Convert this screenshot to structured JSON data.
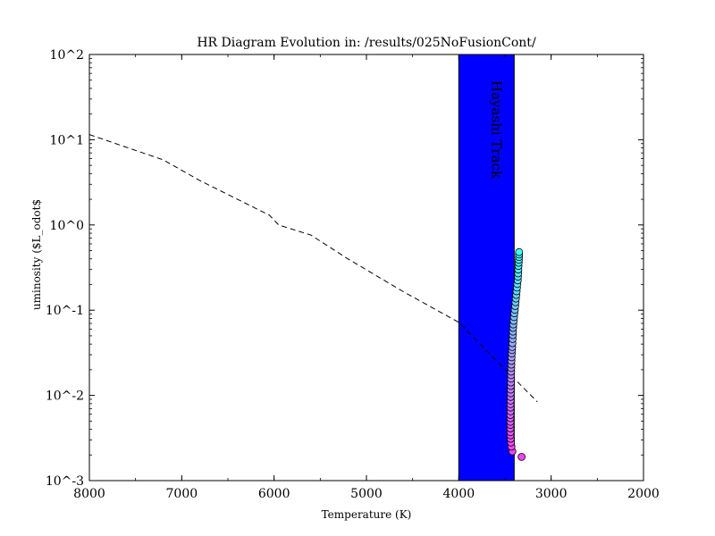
{
  "chart_data": {
    "type": "scatter",
    "title": "HR Diagram Evolution in: /results/025NoFusionCont/",
    "xlabel": "Temperature (K)",
    "ylabel": "uminosity ($L_odot$",
    "x_reversed": true,
    "xlim": [
      8000,
      2000
    ],
    "ylim": [
      0.001,
      100
    ],
    "y_scale": "log",
    "x_ticks": [
      8000,
      7000,
      6000,
      5000,
      4000,
      3000,
      2000
    ],
    "x_tick_labels": [
      "8000",
      "7000",
      "6000",
      "5000",
      "4000",
      "3000",
      "2000"
    ],
    "y_ticks": [
      0.001,
      0.01,
      0.1,
      1,
      10,
      100
    ],
    "y_tick_labels": [
      "10^-3",
      "10^-2",
      "10^-1",
      "10^0",
      "10^1",
      "10^2"
    ],
    "band": {
      "x_from": 4000,
      "x_to": 3400,
      "color": "#0000ff",
      "label": "Hayashi Track"
    },
    "dashed_line": {
      "color": "#000000",
      "x": [
        8000,
        7200,
        6800,
        6050,
        5950,
        5600,
        5200,
        4600,
        4000,
        3600,
        3150
      ],
      "y": [
        11.5,
        5.8,
        3.3,
        1.3,
        1.0,
        0.76,
        0.4,
        0.165,
        0.072,
        0.026,
        0.0084
      ]
    },
    "points": {
      "start_color": "#ff40ff",
      "end_color": "#40ffff",
      "x": [
        3320,
        3420,
        3430,
        3435,
        3438,
        3440,
        3440,
        3441,
        3441,
        3441,
        3441,
        3441,
        3440,
        3440,
        3440,
        3439,
        3439,
        3438,
        3438,
        3437,
        3436,
        3435,
        3434,
        3433,
        3432,
        3431,
        3430,
        3428,
        3426,
        3424,
        3422,
        3420,
        3418,
        3416,
        3414,
        3412,
        3410,
        3406,
        3402,
        3398,
        3394,
        3390,
        3386,
        3382,
        3378,
        3374,
        3370,
        3366,
        3362,
        3360,
        3358,
        3356,
        3354,
        3352,
        3350,
        3348,
        3348,
        3347
      ],
      "y": [
        0.0019,
        0.0022,
        0.0025,
        0.0028,
        0.0031,
        0.0034,
        0.0037,
        0.0041,
        0.0045,
        0.0049,
        0.0054,
        0.0059,
        0.0065,
        0.0072,
        0.0079,
        0.0087,
        0.0096,
        0.0106,
        0.0117,
        0.0129,
        0.0142,
        0.0157,
        0.0173,
        0.019,
        0.021,
        0.023,
        0.0254,
        0.028,
        0.031,
        0.034,
        0.037,
        0.041,
        0.046,
        0.051,
        0.056,
        0.062,
        0.068,
        0.075,
        0.083,
        0.092,
        0.101,
        0.112,
        0.124,
        0.137,
        0.151,
        0.167,
        0.184,
        0.203,
        0.224,
        0.247,
        0.27,
        0.3,
        0.33,
        0.36,
        0.39,
        0.42,
        0.45,
        0.48
      ]
    }
  }
}
